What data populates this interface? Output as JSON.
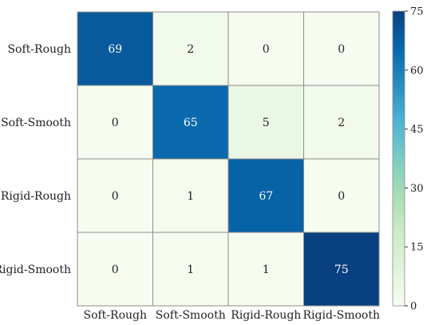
{
  "chart_data": {
    "type": "heatmap",
    "title": "",
    "xlabel": "",
    "ylabel": "",
    "x_categories": [
      "Soft-Rough",
      "Soft-Smooth",
      "Rigid-Rough",
      "Rigid-Smooth"
    ],
    "y_categories": [
      "Soft-Rough",
      "Soft-Smooth",
      "Rigid-Rough",
      "Rigid-Smooth"
    ],
    "values": [
      [
        69,
        2,
        0,
        0
      ],
      [
        0,
        65,
        5,
        2
      ],
      [
        0,
        1,
        67,
        0
      ],
      [
        0,
        1,
        1,
        75
      ]
    ],
    "colorbar": {
      "min": 0,
      "max": 75,
      "ticks": [
        "0",
        "15",
        "30",
        "45",
        "60",
        "75"
      ],
      "colormap": "GnBu",
      "colors": [
        "#f7fcf0",
        "#e0f3db",
        "#ccebc5",
        "#a8ddb5",
        "#7bccc4",
        "#4eb3d3",
        "#2b8cbe",
        "#0868ac",
        "#084081"
      ]
    },
    "grid": true,
    "legend": "right"
  }
}
